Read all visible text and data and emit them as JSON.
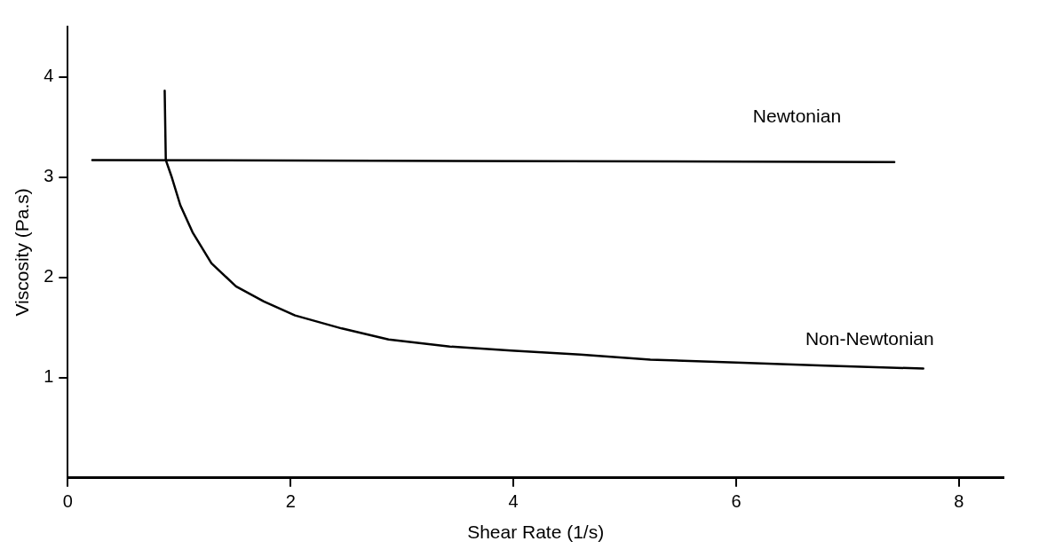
{
  "chart_data": {
    "type": "line",
    "xlabel": "Shear Rate (1/s)",
    "ylabel": "Viscosity (Pa.s)",
    "xlim": [
      0,
      8.4
    ],
    "xticks": [
      0,
      2,
      4,
      6,
      8
    ],
    "ylim": [
      0,
      4.5
    ],
    "yticks": [
      1,
      2,
      3,
      4
    ],
    "grid": false,
    "legend": false,
    "marker": "none",
    "line_style": "solid",
    "series": [
      {
        "name": "Newtonian",
        "color": "#000000",
        "x": [
          0.22,
          7.42
        ],
        "values": [
          3.17,
          3.15
        ]
      },
      {
        "name": "Non-Newtonian",
        "color": "#000000",
        "x": [
          0.87,
          0.88,
          0.93,
          1.01,
          1.12,
          1.29,
          1.51,
          1.76,
          2.04,
          2.46,
          2.88,
          3.43,
          3.98,
          4.6,
          5.23,
          6.0,
          6.8,
          7.68
        ],
        "values": [
          3.86,
          3.17,
          3.01,
          2.72,
          2.45,
          2.14,
          1.91,
          1.76,
          1.62,
          1.49,
          1.38,
          1.31,
          1.27,
          1.23,
          1.18,
          1.15,
          1.12,
          1.09
        ]
      }
    ]
  }
}
